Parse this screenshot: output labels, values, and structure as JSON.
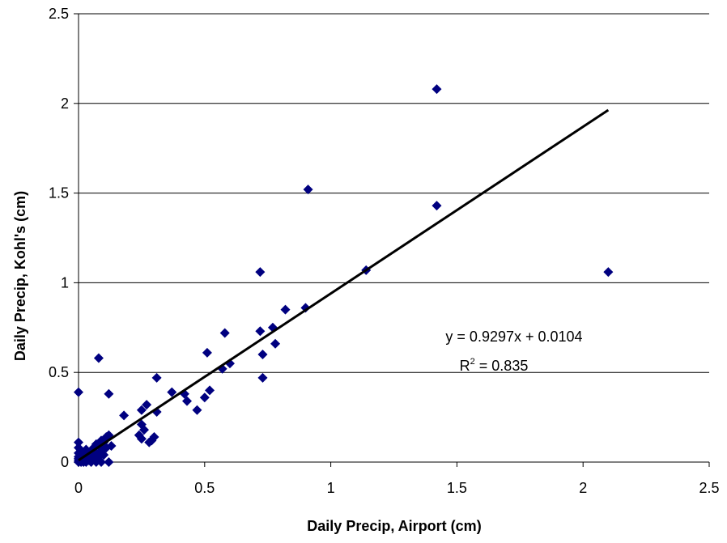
{
  "chart_data": {
    "type": "scatter",
    "xlabel": "Daily Precip, Airport (cm)",
    "ylabel": "Daily Precip, Kohl's (cm)",
    "xlim": [
      0,
      2.5
    ],
    "ylim": [
      0,
      2.5
    ],
    "x_ticks": [
      "0",
      "0.5",
      "1",
      "1.5",
      "2",
      "2.5"
    ],
    "y_ticks": [
      "0",
      "0.5",
      "1",
      "1.5",
      "2",
      "2.5"
    ],
    "grid": "horizontal",
    "marker": "diamond",
    "marker_color": "#000080",
    "trendline": {
      "slope": 0.9297,
      "intercept": 0.0104,
      "x_range": [
        0,
        2.1
      ],
      "color": "#000000",
      "equation_label": "y = 0.9297x + 0.0104",
      "r2_prefix": "R",
      "r2_exponent": "2",
      "r2_suffix": " = 0.835"
    },
    "points": [
      {
        "x": 0.0,
        "y": 0.0
      },
      {
        "x": 0.0,
        "y": 0.01
      },
      {
        "x": 0.0,
        "y": 0.02
      },
      {
        "x": 0.0,
        "y": 0.03
      },
      {
        "x": 0.0,
        "y": 0.05
      },
      {
        "x": 0.0,
        "y": 0.08
      },
      {
        "x": 0.0,
        "y": 0.11
      },
      {
        "x": 0.0,
        "y": 0.39
      },
      {
        "x": 0.01,
        "y": 0.0
      },
      {
        "x": 0.01,
        "y": 0.02
      },
      {
        "x": 0.01,
        "y": 0.04
      },
      {
        "x": 0.01,
        "y": 0.06
      },
      {
        "x": 0.02,
        "y": 0.0
      },
      {
        "x": 0.02,
        "y": 0.01
      },
      {
        "x": 0.02,
        "y": 0.03
      },
      {
        "x": 0.02,
        "y": 0.05
      },
      {
        "x": 0.03,
        "y": 0.0
      },
      {
        "x": 0.03,
        "y": 0.02
      },
      {
        "x": 0.03,
        "y": 0.04
      },
      {
        "x": 0.03,
        "y": 0.07
      },
      {
        "x": 0.04,
        "y": 0.01
      },
      {
        "x": 0.04,
        "y": 0.05
      },
      {
        "x": 0.05,
        "y": 0.0
      },
      {
        "x": 0.05,
        "y": 0.03
      },
      {
        "x": 0.05,
        "y": 0.06
      },
      {
        "x": 0.06,
        "y": 0.02
      },
      {
        "x": 0.06,
        "y": 0.08
      },
      {
        "x": 0.07,
        "y": 0.0
      },
      {
        "x": 0.07,
        "y": 0.05
      },
      {
        "x": 0.07,
        "y": 0.1
      },
      {
        "x": 0.08,
        "y": 0.03
      },
      {
        "x": 0.08,
        "y": 0.09
      },
      {
        "x": 0.08,
        "y": 0.58
      },
      {
        "x": 0.09,
        "y": 0.0
      },
      {
        "x": 0.09,
        "y": 0.06
      },
      {
        "x": 0.09,
        "y": 0.12
      },
      {
        "x": 0.1,
        "y": 0.04
      },
      {
        "x": 0.1,
        "y": 0.11
      },
      {
        "x": 0.11,
        "y": 0.08
      },
      {
        "x": 0.11,
        "y": 0.14
      },
      {
        "x": 0.12,
        "y": 0.0
      },
      {
        "x": 0.12,
        "y": 0.15
      },
      {
        "x": 0.12,
        "y": 0.38
      },
      {
        "x": 0.13,
        "y": 0.09
      },
      {
        "x": 0.18,
        "y": 0.26
      },
      {
        "x": 0.24,
        "y": 0.15
      },
      {
        "x": 0.25,
        "y": 0.13
      },
      {
        "x": 0.25,
        "y": 0.21
      },
      {
        "x": 0.25,
        "y": 0.29
      },
      {
        "x": 0.26,
        "y": 0.18
      },
      {
        "x": 0.27,
        "y": 0.32
      },
      {
        "x": 0.28,
        "y": 0.11
      },
      {
        "x": 0.29,
        "y": 0.12
      },
      {
        "x": 0.3,
        "y": 0.14
      },
      {
        "x": 0.31,
        "y": 0.28
      },
      {
        "x": 0.31,
        "y": 0.47
      },
      {
        "x": 0.37,
        "y": 0.39
      },
      {
        "x": 0.42,
        "y": 0.38
      },
      {
        "x": 0.43,
        "y": 0.34
      },
      {
        "x": 0.47,
        "y": 0.29
      },
      {
        "x": 0.5,
        "y": 0.36
      },
      {
        "x": 0.51,
        "y": 0.61
      },
      {
        "x": 0.52,
        "y": 0.4
      },
      {
        "x": 0.57,
        "y": 0.52
      },
      {
        "x": 0.58,
        "y": 0.72
      },
      {
        "x": 0.6,
        "y": 0.55
      },
      {
        "x": 0.72,
        "y": 0.73
      },
      {
        "x": 0.72,
        "y": 1.06
      },
      {
        "x": 0.73,
        "y": 0.47
      },
      {
        "x": 0.73,
        "y": 0.6
      },
      {
        "x": 0.77,
        "y": 0.75
      },
      {
        "x": 0.78,
        "y": 0.66
      },
      {
        "x": 0.82,
        "y": 0.85
      },
      {
        "x": 0.9,
        "y": 0.86
      },
      {
        "x": 0.91,
        "y": 1.52
      },
      {
        "x": 1.14,
        "y": 1.07
      },
      {
        "x": 1.42,
        "y": 1.43
      },
      {
        "x": 1.42,
        "y": 2.08
      },
      {
        "x": 2.1,
        "y": 1.06
      }
    ]
  }
}
